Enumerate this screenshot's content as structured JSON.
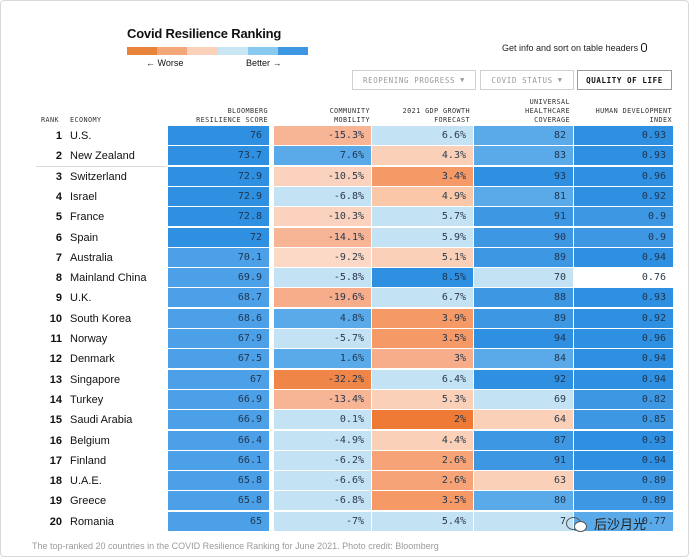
{
  "header": {
    "title": "Covid Resilience Ranking",
    "legend_worse": "← Worse",
    "legend_better": "Better →",
    "info_text": "Get info and sort on table headers"
  },
  "legend_colors": [
    "#e8833a",
    "#f3a67a",
    "#fbd2b9",
    "#c9e6f5",
    "#89c8ef",
    "#3d97e2"
  ],
  "tabs": [
    {
      "label": "REOPENING PROGRESS",
      "caret": "▼",
      "active": false
    },
    {
      "label": "COVID STATUS",
      "caret": "▼",
      "active": false
    },
    {
      "label": "QUALITY OF LIFE",
      "caret": "",
      "active": true
    }
  ],
  "columns": {
    "rank": "RANK",
    "economy": "ECONOMY",
    "score": [
      "BLOOMBERG",
      "RESILIENCE SCORE"
    ],
    "mobility": [
      "COMMUNITY",
      "MOBILITY"
    ],
    "gdp": [
      "2021 GDP GROWTH",
      "FORECAST"
    ],
    "healthcare": [
      "UNIVERSAL",
      "HEALTHCARE",
      "COVERAGE"
    ],
    "hdi": [
      "HUMAN DEVELOPMENT",
      "INDEX"
    ]
  },
  "chart_data": {
    "type": "table",
    "title": "Covid Resilience Ranking",
    "columns": [
      "Rank",
      "Economy",
      "Bloomberg Resilience Score",
      "Community Mobility",
      "2021 GDP Growth Forecast",
      "Universal Healthcare Coverage",
      "Human Development Index"
    ],
    "rows": [
      {
        "rank": 1,
        "economy": "U.S.",
        "score": "76",
        "mobility": "-15.3%",
        "gdp": "6.6%",
        "healthcare": "82",
        "hdi": "0.93"
      },
      {
        "rank": 2,
        "economy": "New Zealand",
        "score": "73.7",
        "mobility": "7.6%",
        "gdp": "4.3%",
        "healthcare": "83",
        "hdi": "0.93"
      },
      {
        "rank": 3,
        "economy": "Switzerland",
        "score": "72.9",
        "mobility": "-10.5%",
        "gdp": "3.4%",
        "healthcare": "93",
        "hdi": "0.96"
      },
      {
        "rank": 4,
        "economy": "Israel",
        "score": "72.9",
        "mobility": "-6.8%",
        "gdp": "4.9%",
        "healthcare": "81",
        "hdi": "0.92"
      },
      {
        "rank": 5,
        "economy": "France",
        "score": "72.8",
        "mobility": "-10.3%",
        "gdp": "5.7%",
        "healthcare": "91",
        "hdi": "0.9"
      },
      {
        "rank": 6,
        "economy": "Spain",
        "score": "72",
        "mobility": "-14.1%",
        "gdp": "5.9%",
        "healthcare": "90",
        "hdi": "0.9"
      },
      {
        "rank": 7,
        "economy": "Australia",
        "score": "70.1",
        "mobility": "-9.2%",
        "gdp": "5.1%",
        "healthcare": "89",
        "hdi": "0.94"
      },
      {
        "rank": 8,
        "economy": "Mainland China",
        "score": "69.9",
        "mobility": "-5.8%",
        "gdp": "8.5%",
        "healthcare": "70",
        "hdi": "0.76"
      },
      {
        "rank": 9,
        "economy": "U.K.",
        "score": "68.7",
        "mobility": "-19.6%",
        "gdp": "6.7%",
        "healthcare": "88",
        "hdi": "0.93"
      },
      {
        "rank": 10,
        "economy": "South Korea",
        "score": "68.6",
        "mobility": "4.8%",
        "gdp": "3.9%",
        "healthcare": "89",
        "hdi": "0.92"
      },
      {
        "rank": 11,
        "economy": "Norway",
        "score": "67.9",
        "mobility": "-5.7%",
        "gdp": "3.5%",
        "healthcare": "94",
        "hdi": "0.96"
      },
      {
        "rank": 12,
        "economy": "Denmark",
        "score": "67.5",
        "mobility": "1.6%",
        "gdp": "3%",
        "healthcare": "84",
        "hdi": "0.94"
      },
      {
        "rank": 13,
        "economy": "Singapore",
        "score": "67",
        "mobility": "-32.2%",
        "gdp": "6.4%",
        "healthcare": "92",
        "hdi": "0.94"
      },
      {
        "rank": 14,
        "economy": "Turkey",
        "score": "66.9",
        "mobility": "-13.4%",
        "gdp": "5.3%",
        "healthcare": "69",
        "hdi": "0.82"
      },
      {
        "rank": 15,
        "economy": "Saudi Arabia",
        "score": "66.9",
        "mobility": "0.1%",
        "gdp": "2%",
        "healthcare": "64",
        "hdi": "0.85"
      },
      {
        "rank": 16,
        "economy": "Belgium",
        "score": "66.4",
        "mobility": "-4.9%",
        "gdp": "4.4%",
        "healthcare": "87",
        "hdi": "0.93"
      },
      {
        "rank": 17,
        "economy": "Finland",
        "score": "66.1",
        "mobility": "-6.2%",
        "gdp": "2.6%",
        "healthcare": "91",
        "hdi": "0.94"
      },
      {
        "rank": 18,
        "economy": "U.A.E.",
        "score": "65.8",
        "mobility": "-6.6%",
        "gdp": "2.6%",
        "healthcare": "63",
        "hdi": "0.89"
      },
      {
        "rank": 19,
        "economy": "Greece",
        "score": "65.8",
        "mobility": "-6.8%",
        "gdp": "3.5%",
        "healthcare": "80",
        "hdi": "0.89"
      },
      {
        "rank": 20,
        "economy": "Romania",
        "score": "65",
        "mobility": "-7%",
        "gdp": "5.4%",
        "healthcare": "7",
        "hdi": "0.77"
      }
    ],
    "cell_colors": {
      "score": [
        "#2f8fe0",
        "#2f8fe0",
        "#2f8fe0",
        "#2f8fe0",
        "#2f8fe0",
        "#2f8fe0",
        "#4ba0e7",
        "#4ba0e7",
        "#4ba0e7",
        "#4ba0e7",
        "#4ba0e7",
        "#4ba0e7",
        "#4ba0e7",
        "#4ba0e7",
        "#4ba0e7",
        "#4ba0e7",
        "#4ba0e7",
        "#4ba0e7",
        "#4ba0e7",
        "#4ba0e7"
      ],
      "mobility": [
        "#f8b596",
        "#5aaae9",
        "#fad2bd",
        "#c3e2f4",
        "#fad2bd",
        "#f8b596",
        "#fbd9c6",
        "#c3e2f4",
        "#f7ad8a",
        "#5aaae9",
        "#c3e2f4",
        "#5aaae9",
        "#f08548",
        "#f8b596",
        "#c3e2f4",
        "#c3e2f4",
        "#c3e2f4",
        "#c3e2f4",
        "#c3e2f4",
        "#c3e2f4"
      ],
      "gdp": [
        "#c3e2f4",
        "#fbd0b8",
        "#f59a66",
        "#fbc7a9",
        "#c3e2f4",
        "#c3e2f4",
        "#fbd0b8",
        "#2f8fe0",
        "#c3e2f4",
        "#f59a66",
        "#f59a66",
        "#f7ad8a",
        "#c3e2f4",
        "#fbd0b8",
        "#ee7a35",
        "#fbd0b8",
        "#f6a377",
        "#f6a377",
        "#f59a66",
        "#c3e2f4"
      ],
      "healthcare": [
        "#5aaae9",
        "#5aaae9",
        "#2f8fe0",
        "#5aaae9",
        "#3d97e2",
        "#3d97e2",
        "#3d97e2",
        "#c3e2f4",
        "#3d97e2",
        "#3d97e2",
        "#2f8fe0",
        "#5aaae9",
        "#2f8fe0",
        "#c3e2f4",
        "#fbd0b8",
        "#3d97e2",
        "#3d97e2",
        "#fbd0b8",
        "#5aaae9",
        "#c3e2f4"
      ],
      "hdi": [
        "#2f8fe0",
        "#2f8fe0",
        "#2f8fe0",
        "#2f8fe0",
        "#3d97e2",
        "#3d97e2",
        "#2f8fe0",
        "#ffffff",
        "#2f8fe0",
        "#2f8fe0",
        "#2f8fe0",
        "#2f8fe0",
        "#2f8fe0",
        "#3d97e2",
        "#3d97e2",
        "#2f8fe0",
        "#2f8fe0",
        "#3d97e2",
        "#3d97e2",
        "#5aaae9"
      ]
    }
  },
  "footer": {
    "caption": "The top-ranked 20 countries in the COVID Resilience Ranking for June 2021. Photo credit: Bloomberg"
  },
  "watermark": {
    "text": "后沙月光"
  }
}
